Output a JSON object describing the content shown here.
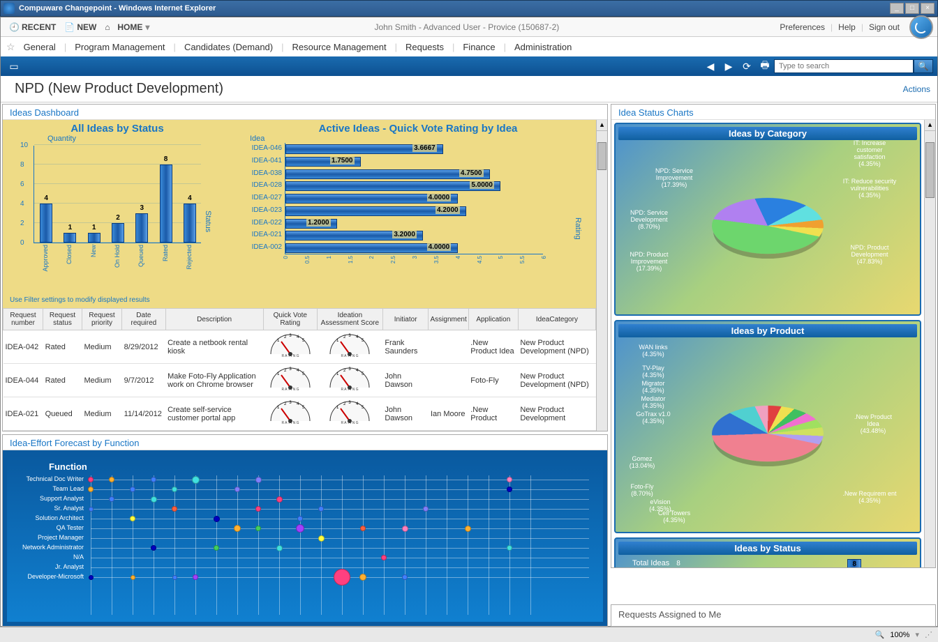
{
  "window": {
    "title": "Compuware Changepoint - Windows Internet Explorer"
  },
  "toolbar": {
    "recent": "RECENT",
    "new": "NEW",
    "home": "HOME",
    "user": "John Smith - Advanced User - Provice (150687-2)",
    "prefs": "Preferences",
    "help": "Help",
    "signout": "Sign out"
  },
  "menu": [
    "General",
    "Program Management",
    "Candidates (Demand)",
    "Resource Management",
    "Requests",
    "Finance",
    "Administration"
  ],
  "search": {
    "placeholder": "Type to search"
  },
  "page": {
    "title": "NPD (New Product Development)",
    "actions": "Actions"
  },
  "ideas_dashboard": {
    "title": "Ideas Dashboard",
    "bar_chart": {
      "title": "All Ideas by Status",
      "ylabel": "Quantity",
      "xlabel_vert": "Status",
      "ymax": 10,
      "ytick_step": 2,
      "categories": [
        "Approved",
        "Closed",
        "New",
        "On Hold",
        "Queued",
        "Rated",
        "Rejected"
      ],
      "values": [
        4,
        1,
        1,
        2,
        3,
        8,
        4
      ],
      "bar_color": "#2a70c0"
    },
    "hbar_chart": {
      "title": "Active Ideas - Quick Vote Rating by Idea",
      "ylabel": "Idea",
      "xlabel_vert": "Rating",
      "xmax": 6,
      "xtick_step": 0.5,
      "ideas": [
        "IDEA-046",
        "IDEA-041",
        "IDEA-038",
        "IDEA-028",
        "IDEA-027",
        "IDEA-023",
        "IDEA-022",
        "IDEA-021",
        "IDEA-002"
      ],
      "values": [
        3.6667,
        1.75,
        4.75,
        5.0,
        4.0,
        4.2,
        1.2,
        3.2,
        4.0
      ]
    },
    "filter_note": "Use Filter settings to modify displayed results",
    "table": {
      "headers": [
        "Request number",
        "Request status",
        "Request priority",
        "Date required",
        "Description",
        "Quick Vote Rating",
        "Ideation Assessment Score",
        "Initiator",
        "Assignment",
        "Application",
        "IdeaCategory"
      ],
      "rows": [
        {
          "num": "IDEA-042",
          "status": "Rated",
          "pri": "Medium",
          "date": "8/29/2012",
          "desc": "Create a netbook rental kiosk",
          "init": "Frank Saunders",
          "assign": "",
          "app": ".New Product Idea",
          "cat": "New Product Development (NPD)"
        },
        {
          "num": "IDEA-044",
          "status": "Rated",
          "pri": "Medium",
          "date": "9/7/2012",
          "desc": "Make Foto-Fly Application work on Chrome browser",
          "init": "John Dawson",
          "assign": "",
          "app": "Foto-Fly",
          "cat": "New Product Development (NPD)"
        },
        {
          "num": "IDEA-021",
          "status": "Queued",
          "pri": "Medium",
          "date": "11/14/2012",
          "desc": "Create self-service customer portal app",
          "init": "John Dawson",
          "assign": "Ian Moore",
          "app": ".New Product",
          "cat": "New Product Development"
        }
      ]
    }
  },
  "forecast": {
    "title": "Idea-Effort Forecast by Function",
    "axis_label": "Function",
    "functions": [
      "Technical Doc Writer",
      "Team Lead",
      "Support Analyst",
      "Sr. Analyst",
      "Solution Architect",
      "QA Tester",
      "Project Manager",
      "Network Administrator",
      "N/A",
      "Jr. Analyst",
      "Developer-Microsoft"
    ],
    "bubble_colors": [
      "#ff4080",
      "#ffb030",
      "#40d060",
      "#4080ff",
      "#a040ff",
      "#40e0e0",
      "#ffff40",
      "#ff6040",
      "#8080ff",
      "#ff80c0",
      "#0000c0"
    ]
  },
  "status_charts": {
    "title": "Idea Status Charts",
    "pie1": {
      "title": "Ideas by Category",
      "slices": [
        {
          "label": "NPD: Product Development",
          "pct": "(47.83%)",
          "color": "#6dd66d"
        },
        {
          "label": "NPD: Product Improvement",
          "pct": "(17.39%)",
          "color": "#b080f0"
        },
        {
          "label": "NPD: Service Improvement",
          "pct": "(17.39%)",
          "color": "#2a80e0"
        },
        {
          "label": "NPD: Service Development",
          "pct": "(8.70%)",
          "color": "#60e0e0"
        },
        {
          "label": "IT: Increase customer satisfaction",
          "pct": "(4.35%)",
          "color": "#f0a030"
        },
        {
          "label": "IT: Reduce security vulnerabilities",
          "pct": "(4.35%)",
          "color": "#f0e050"
        }
      ]
    },
    "pie2": {
      "title": "Ideas by Product",
      "slices": [
        {
          "label": ".New Product Idea",
          "pct": "(43.48%)",
          "color": "#f08090"
        },
        {
          "label": "Gomez",
          "pct": "(13.04%)",
          "color": "#3070d0"
        },
        {
          "label": "Foto-Fly",
          "pct": "(8.70%)",
          "color": "#50d0d0"
        },
        {
          "label": "WAN links",
          "pct": "(4.35%)",
          "color": "#f0a0c0"
        },
        {
          "label": "TV-Play",
          "pct": "(4.35%)",
          "color": "#e04040"
        },
        {
          "label": "Migrator",
          "pct": "(4.35%)",
          "color": "#f0e050"
        },
        {
          "label": "Mediator",
          "pct": "(4.35%)",
          "color": "#40c060"
        },
        {
          "label": "GoTrax v1.0",
          "pct": "(4.35%)",
          "color": "#f070d0"
        },
        {
          "label": "eVision",
          "pct": "(4.35%)",
          "color": "#a0e060"
        },
        {
          "label": "Cell Towers",
          "pct": "(4.35%)",
          "color": "#d0e060"
        },
        {
          "label": ".New Requirem ent",
          "pct": "(4.35%)",
          "color": "#b0a0f0"
        }
      ]
    },
    "pie3": {
      "title": "Ideas by Status",
      "sub": "Total Ideas",
      "ytick": "8",
      "barval": "8"
    }
  },
  "requests_me": {
    "title": "Requests Assigned to Me"
  },
  "status": {
    "zoom": "100%"
  }
}
